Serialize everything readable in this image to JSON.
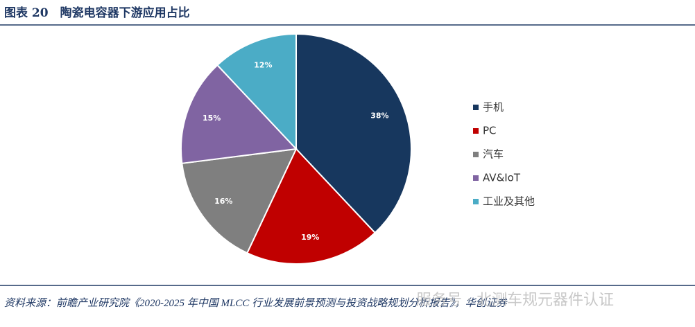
{
  "chart_data": {
    "type": "pie",
    "title": "图表 20　陶瓷电容器下游应用占比",
    "categories": [
      "手机",
      "PC",
      "汽车",
      "AV&IoT",
      "工业及其他"
    ],
    "values": [
      38,
      19,
      16,
      15,
      12
    ],
    "value_labels": [
      "38%",
      "19%",
      "16%",
      "15%",
      "12%"
    ],
    "colors": [
      "#17375e",
      "#c00000",
      "#7f7f7f",
      "#8064a2",
      "#4bacc6"
    ],
    "legend": "right",
    "source": "资料来源：前瞻产业研究院《2020-2025 年中国 MLCC 行业发展前景预测与投资战略规划分析报告》，华创证券",
    "watermark": "服务号 · 北测车规元器件认证"
  }
}
